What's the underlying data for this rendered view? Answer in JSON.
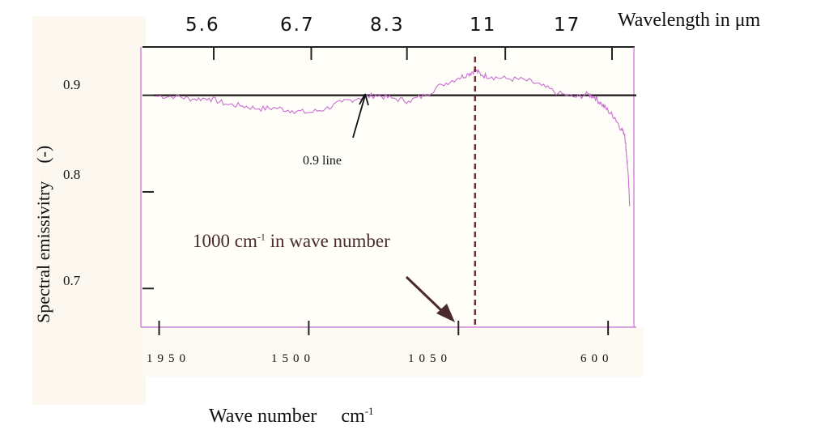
{
  "chart_data": {
    "type": "line",
    "title": "",
    "ylabel": "Spectral emissivitry",
    "ylabel_unit": "(-)",
    "xlabel": "Wave number",
    "xlabel_unit": "cm-1",
    "top_axis_label": "Wavelength in μm",
    "ylim": [
      0.66,
      0.95
    ],
    "xlim": [
      2000,
      520
    ],
    "y_ticks": [
      "0.9",
      "0.8",
      "0.7"
    ],
    "x_ticks_bottom": [
      "1950",
      "1500",
      "1050",
      "600"
    ],
    "x_ticks_top": [
      "5.6",
      "6.7",
      "8.3",
      "11",
      "17"
    ],
    "annotations": {
      "line_label": "0.9 line",
      "wavenumber_label": "1000 cm-1 in wave number"
    },
    "reference_line": {
      "y": 0.9
    },
    "marker_line": {
      "x": 1000
    },
    "series": [
      {
        "x": [
          1960,
          1900,
          1850,
          1800,
          1750,
          1700,
          1650,
          1600,
          1550,
          1500,
          1450,
          1400,
          1350,
          1300,
          1250,
          1200,
          1150,
          1100,
          1050,
          1020,
          1000,
          980,
          950,
          900,
          850,
          800,
          750,
          700,
          660,
          640,
          620,
          600,
          580,
          560,
          550,
          545,
          540,
          535
        ],
        "y": [
          0.899,
          0.899,
          0.896,
          0.897,
          0.891,
          0.889,
          0.886,
          0.887,
          0.884,
          0.882,
          0.886,
          0.893,
          0.897,
          0.9,
          0.897,
          0.894,
          0.9,
          0.911,
          0.918,
          0.922,
          0.926,
          0.921,
          0.919,
          0.917,
          0.916,
          0.91,
          0.902,
          0.898,
          0.901,
          0.898,
          0.891,
          0.884,
          0.877,
          0.865,
          0.86,
          0.84,
          0.82,
          0.785
        ],
        "color": "#c86fd0"
      }
    ],
    "colors": {
      "series": "#c86fd0",
      "reference_line": "#2a1f22",
      "marker_line": "#7a2a2a",
      "arrow": "#4a2a2a",
      "axes": "#222222"
    }
  }
}
